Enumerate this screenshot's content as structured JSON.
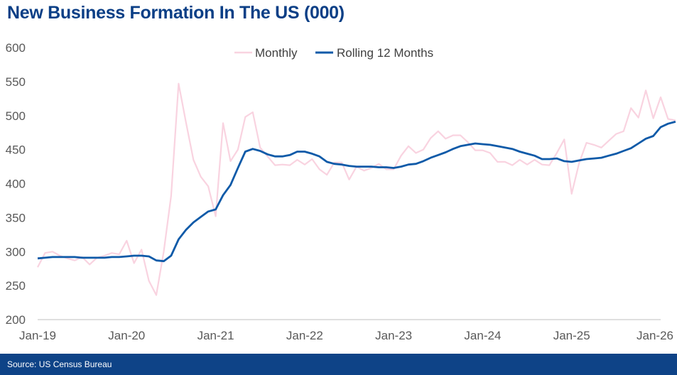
{
  "title": "New Business Formation In The US (000)",
  "source": "Source: US Census Bureau",
  "colors": {
    "monthly": "#F9D3E0",
    "rolling": "#0E5AA8",
    "title": "#0B3F86",
    "footer": "#0E4387"
  },
  "chart_data": {
    "type": "line",
    "title": "New Business Formation In The US (000)",
    "xlabel": "",
    "ylabel": "",
    "ylim": [
      200,
      600
    ],
    "yticks": [
      200,
      250,
      300,
      350,
      400,
      450,
      500,
      550,
      600
    ],
    "xlim": [
      0,
      84
    ],
    "xtick_positions": [
      0,
      12,
      24,
      36,
      48,
      60,
      72,
      84
    ],
    "xtick_labels": [
      "Jan-19",
      "Jan-20",
      "Jan-21",
      "Jan-22",
      "Jan-23",
      "Jan-24",
      "Jan-25",
      "Jan-26"
    ],
    "grid": false,
    "legend": "top-center",
    "series": [
      {
        "name": "Monthly",
        "color": "#F9D3E0",
        "values": [
          277,
          298,
          300,
          294,
          290,
          287,
          292,
          281,
          291,
          294,
          298,
          296,
          316,
          283,
          303,
          257,
          236,
          300,
          382,
          547,
          490,
          435,
          410,
          396,
          352,
          489,
          433,
          450,
          498,
          505,
          453,
          440,
          427,
          428,
          427,
          435,
          428,
          436,
          421,
          413,
          431,
          431,
          406,
          425,
          419,
          423,
          429,
          421,
          421,
          441,
          455,
          445,
          450,
          467,
          477,
          466,
          471,
          471,
          461,
          449,
          449,
          445,
          432,
          432,
          427,
          435,
          428,
          435,
          428,
          427,
          445,
          465,
          385,
          430,
          460,
          457,
          453,
          463,
          473,
          477,
          511,
          497,
          537,
          496,
          527,
          495,
          493
        ]
      },
      {
        "name": "Rolling 12 Months",
        "color": "#0E5AA8",
        "values": [
          290,
          291,
          292,
          292,
          292,
          292,
          291,
          291,
          291,
          291,
          292,
          292,
          293,
          294,
          294,
          293,
          287,
          286,
          294,
          318,
          332,
          343,
          351,
          359,
          362,
          383,
          398,
          423,
          447,
          451,
          448,
          443,
          440,
          440,
          442,
          447,
          447,
          444,
          440,
          432,
          429,
          428,
          426,
          425,
          425,
          425,
          424,
          424,
          423,
          425,
          428,
          429,
          433,
          438,
          442,
          446,
          451,
          455,
          457,
          459,
          458,
          457,
          455,
          453,
          451,
          447,
          444,
          441,
          436,
          436,
          437,
          433,
          432,
          434,
          436,
          437,
          438,
          441,
          444,
          448,
          452,
          459,
          466,
          470,
          483,
          488,
          491
        ]
      }
    ]
  }
}
